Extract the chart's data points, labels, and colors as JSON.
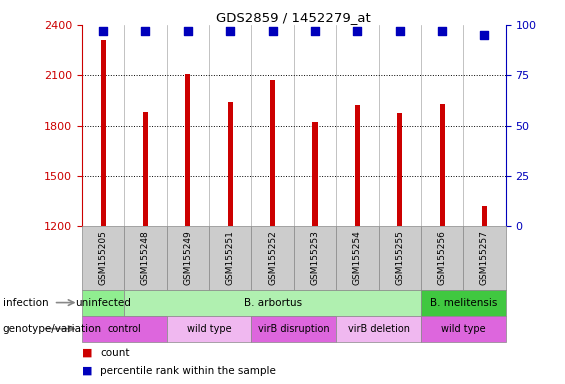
{
  "title": "GDS2859 / 1452279_at",
  "samples": [
    "GSM155205",
    "GSM155248",
    "GSM155249",
    "GSM155251",
    "GSM155252",
    "GSM155253",
    "GSM155254",
    "GSM155255",
    "GSM155256",
    "GSM155257"
  ],
  "counts": [
    2310,
    1880,
    2105,
    1940,
    2070,
    1820,
    1920,
    1875,
    1930,
    1320
  ],
  "percentile_ranks": [
    97,
    97,
    97,
    97,
    97,
    97,
    97,
    97,
    97,
    95
  ],
  "bar_color": "#cc0000",
  "dot_color": "#0000bb",
  "ylim_left": [
    1200,
    2400
  ],
  "ylim_right": [
    0,
    100
  ],
  "yticks_left": [
    1200,
    1500,
    1800,
    2100,
    2400
  ],
  "yticks_right": [
    0,
    25,
    50,
    75,
    100
  ],
  "infection_groups": [
    {
      "label": "uninfected",
      "start": 0,
      "end": 1,
      "color": "#90ee90"
    },
    {
      "label": "B. arbortus",
      "start": 1,
      "end": 8,
      "color": "#b0f0b0"
    },
    {
      "label": "B. melitensis",
      "start": 8,
      "end": 10,
      "color": "#40c840"
    }
  ],
  "genotype_groups": [
    {
      "label": "control",
      "start": 0,
      "end": 2,
      "color": "#dd66dd"
    },
    {
      "label": "wild type",
      "start": 2,
      "end": 4,
      "color": "#f0b8f0"
    },
    {
      "label": "virB disruption",
      "start": 4,
      "end": 6,
      "color": "#dd66dd"
    },
    {
      "label": "virB deletion",
      "start": 6,
      "end": 8,
      "color": "#f0b8f0"
    },
    {
      "label": "wild type",
      "start": 8,
      "end": 10,
      "color": "#dd66dd"
    }
  ],
  "infection_label": "infection",
  "genotype_label": "genotype/variation",
  "legend_count_label": "count",
  "legend_pct_label": "percentile rank within the sample",
  "bar_width": 0.12,
  "dot_size": 28,
  "sample_box_color": "#cccccc",
  "grid_color": "#000000",
  "left_axis_color": "#cc0000",
  "right_axis_color": "#0000bb"
}
